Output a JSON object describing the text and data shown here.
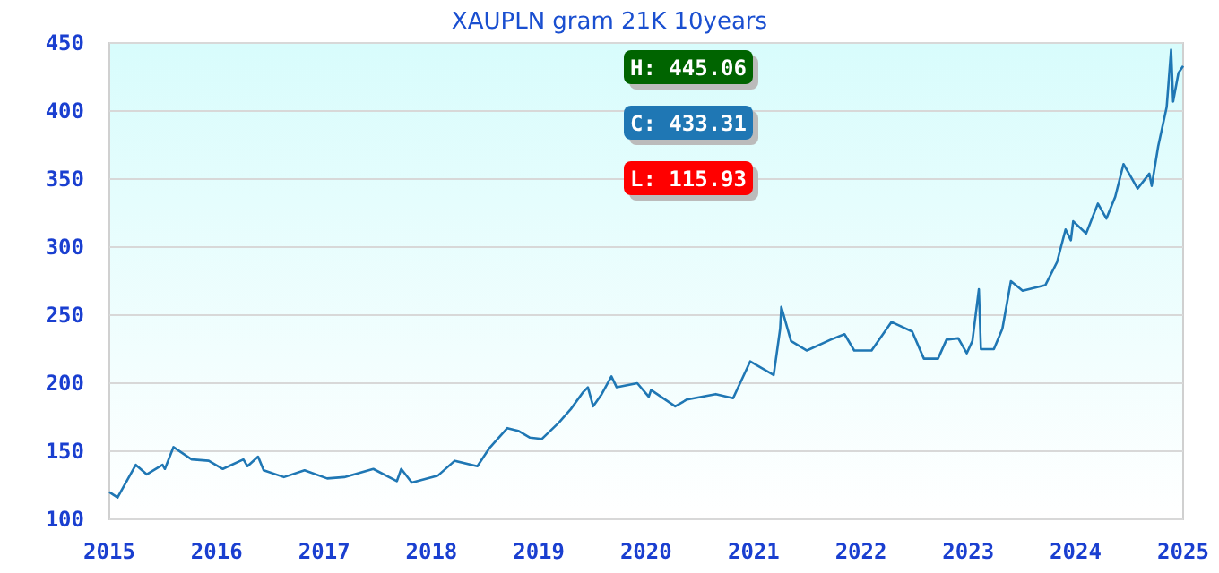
{
  "chart_data": {
    "type": "line",
    "title": "XAUPLN gram 21K 10years",
    "x": [
      "2015-01-01",
      "2015-01-29",
      "2015-04-01",
      "2015-05-08",
      "2015-07-01",
      "2015-07-09",
      "2015-08-07",
      "2015-10-08",
      "2015-12-05",
      "2016-01-22",
      "2016-04-01",
      "2016-04-15",
      "2016-05-21",
      "2016-06-09",
      "2016-08-17",
      "2016-10-26",
      "2017-01-11",
      "2017-03-10",
      "2017-06-17",
      "2017-09-05",
      "2017-09-20",
      "2017-10-26",
      "2018-01-22",
      "2018-03-21",
      "2018-06-06",
      "2018-07-16",
      "2018-09-16",
      "2018-10-23",
      "2018-12-02",
      "2019-01-11",
      "2019-03-10",
      "2019-04-20",
      "2019-05-30",
      "2019-06-17",
      "2019-07-05",
      "2019-08-03",
      "2019-09-05",
      "2019-09-23",
      "2019-12-02",
      "2020-01-10",
      "2020-01-18",
      "2020-04-09",
      "2020-05-19",
      "2020-08-25",
      "2020-10-23",
      "2020-12-20",
      "2021-03-10",
      "2021-04-01",
      "2021-04-05",
      "2021-05-08",
      "2021-07-01",
      "2021-09-20",
      "2021-11-06",
      "2021-12-09",
      "2022-02-06",
      "2022-04-15",
      "2022-06-24",
      "2022-08-03",
      "2022-09-20",
      "2022-10-19",
      "2022-11-28",
      "2022-12-27",
      "2023-01-15",
      "2023-02-06",
      "2023-02-13",
      "2023-03-29",
      "2023-04-27",
      "2023-05-26",
      "2023-07-05",
      "2023-09-20",
      "2023-10-30",
      "2023-11-28",
      "2023-12-16",
      "2023-12-24",
      "2024-02-06",
      "2024-03-17",
      "2024-04-15",
      "2024-05-15",
      "2024-06-12",
      "2024-07-01",
      "2024-07-30",
      "2024-09-08",
      "2024-09-16",
      "2024-10-08",
      "2024-11-06",
      "2024-11-21",
      "2024-11-28",
      "2024-12-16",
      "2025-01-01"
    ],
    "series": [
      {
        "color": "#1f77b4",
        "values": [
          120,
          116,
          140,
          133,
          140,
          137,
          153,
          144,
          143,
          137,
          144,
          139,
          146,
          136,
          131,
          136,
          130,
          131,
          137,
          128,
          137,
          127,
          132,
          143,
          139,
          152,
          167,
          165,
          160,
          159,
          171,
          181,
          193,
          197,
          183,
          192,
          205,
          197,
          200,
          190,
          195,
          183,
          188,
          192,
          189,
          216,
          206,
          240,
          256,
          231,
          224,
          232,
          236,
          224,
          224,
          245,
          238,
          218,
          218,
          232,
          233,
          222,
          231,
          269,
          225,
          225,
          240,
          275,
          268,
          272,
          289,
          313,
          305,
          319,
          310,
          332,
          321,
          337,
          361,
          354,
          343,
          354,
          345,
          374,
          403,
          445,
          407,
          428,
          433
        ]
      }
    ],
    "xlim": [
      "2015-01-01",
      "2025-01-01"
    ],
    "xticks": [
      "2015",
      "2016",
      "2017",
      "2018",
      "2019",
      "2020",
      "2021",
      "2022",
      "2023",
      "2024",
      "2025"
    ],
    "ylim": [
      100,
      450
    ],
    "yticks": [
      100,
      150,
      200,
      250,
      300,
      350,
      400,
      450
    ],
    "grid": "y",
    "marker": "none",
    "line_style": "solid",
    "annotations": [
      "H: 445.06",
      "C: 433.31",
      "L: 115.93"
    ]
  }
}
